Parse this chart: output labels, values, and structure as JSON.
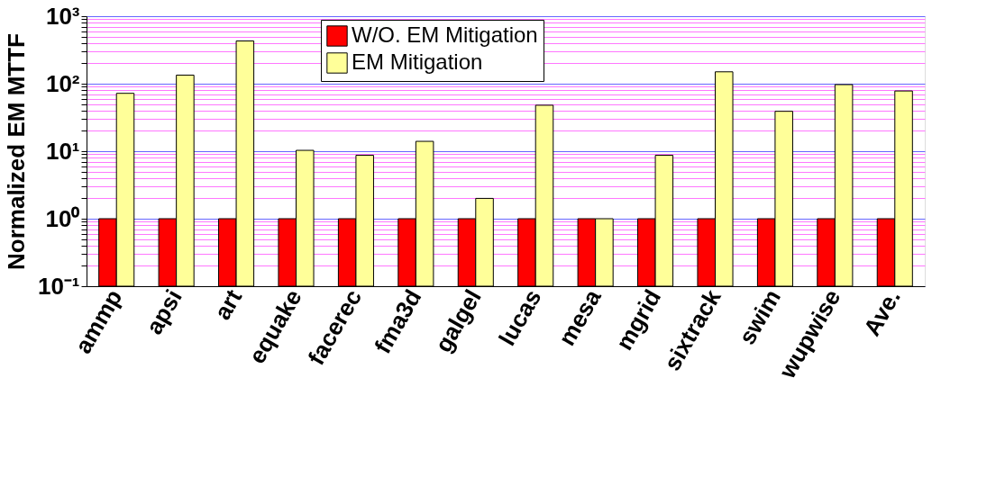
{
  "chart_data": {
    "type": "bar",
    "ylabel": "Normalized EM MTTF",
    "log": "y",
    "grid": "y",
    "legend": "top",
    "categories": [
      "ammp",
      "apsi",
      "art",
      "equake",
      "facerec",
      "fma3d",
      "galgel",
      "lucas",
      "mesa",
      "mgrid",
      "sixtrack",
      "swim",
      "wupwise",
      "Ave."
    ],
    "series": [
      {
        "name": "W/O. EM Mitigation",
        "color": "#ff0000",
        "values": [
          1,
          1,
          1,
          1,
          1,
          1,
          1,
          1,
          1,
          1,
          1,
          1,
          1,
          1
        ]
      },
      {
        "name": "EM Mitigation",
        "color": "#ffff99",
        "values": [
          72,
          134,
          430,
          10.3,
          8.7,
          14,
          2.0,
          48,
          1,
          8.7,
          150,
          39,
          97,
          78
        ]
      }
    ],
    "ylim": [
      0.1,
      1000
    ],
    "yticks": [
      {
        "value": 0.1,
        "label": "10⁻¹"
      },
      {
        "value": 0.2,
        "label": null
      },
      {
        "value": 0.3,
        "label": null
      },
      {
        "value": 0.4,
        "label": null
      },
      {
        "value": 0.5,
        "label": null
      },
      {
        "value": 0.6,
        "label": null
      },
      {
        "value": 0.7,
        "label": null
      },
      {
        "value": 0.8,
        "label": null
      },
      {
        "value": 0.9,
        "label": null
      },
      {
        "value": 1,
        "label": "10⁰"
      },
      {
        "value": 2,
        "label": null
      },
      {
        "value": 3,
        "label": null
      },
      {
        "value": 4,
        "label": null
      },
      {
        "value": 5,
        "label": null
      },
      {
        "value": 6,
        "label": null
      },
      {
        "value": 7,
        "label": null
      },
      {
        "value": 8,
        "label": null
      },
      {
        "value": 9,
        "label": null
      },
      {
        "value": 10,
        "label": "10¹"
      },
      {
        "value": 20,
        "label": null
      },
      {
        "value": 30,
        "label": null
      },
      {
        "value": 40,
        "label": null
      },
      {
        "value": 50,
        "label": null
      },
      {
        "value": 60,
        "label": null
      },
      {
        "value": 70,
        "label": null
      },
      {
        "value": 80,
        "label": null
      },
      {
        "value": 90,
        "label": null
      },
      {
        "value": 100,
        "label": "10²"
      },
      {
        "value": 200,
        "label": null
      },
      {
        "value": 300,
        "label": null
      },
      {
        "value": 400,
        "label": null
      },
      {
        "value": 500,
        "label": null
      },
      {
        "value": 600,
        "label": null
      },
      {
        "value": 700,
        "label": null
      },
      {
        "value": 800,
        "label": null
      },
      {
        "value": 900,
        "label": null
      },
      {
        "value": 1000,
        "label": "10³"
      }
    ]
  }
}
